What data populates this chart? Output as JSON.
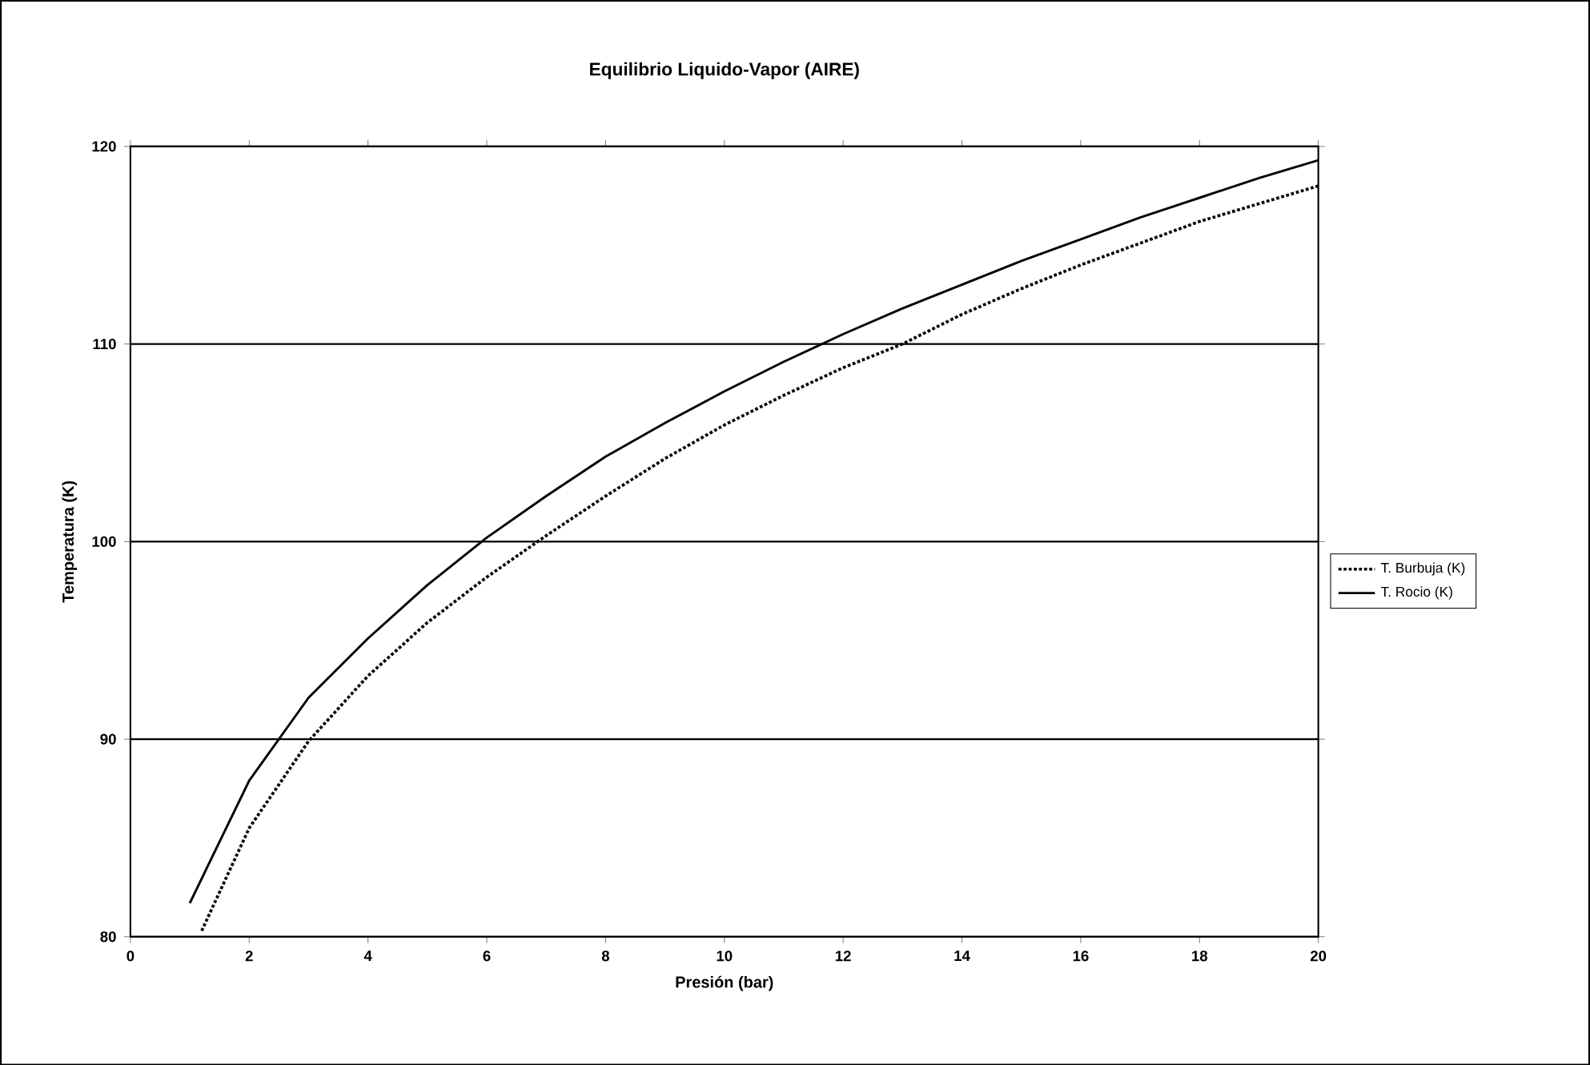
{
  "chart_data": {
    "type": "line",
    "title": "Equilibrio Liquido-Vapor (AIRE)",
    "xlabel": "Presión (bar)",
    "ylabel": "Temperatura (K)",
    "xlim": [
      0,
      20
    ],
    "xticks": [
      0,
      2,
      4,
      6,
      8,
      10,
      12,
      14,
      16,
      18,
      20
    ],
    "ylim": [
      80,
      120
    ],
    "yticks": [
      80,
      90,
      100,
      110,
      120
    ],
    "grid": "y",
    "legend": "right",
    "marker": "none",
    "series": [
      {
        "name": "T. Burbuja (K)",
        "color": "#000000",
        "line_style": "dotted",
        "x": [
          1.2,
          2,
          3,
          4,
          5,
          6,
          7,
          8,
          9,
          10,
          11,
          12,
          13,
          14,
          15,
          16,
          17,
          18,
          19,
          20
        ],
        "values": [
          80.3,
          85.5,
          89.9,
          93.2,
          95.9,
          98.2,
          100.3,
          102.3,
          104.2,
          105.9,
          107.4,
          108.8,
          110.0,
          111.5,
          112.8,
          114.0,
          115.1,
          116.2,
          117.1,
          118.0
        ]
      },
      {
        "name": "T. Rocio (K)",
        "color": "#000000",
        "line_style": "solid",
        "x": [
          1,
          2,
          3,
          4,
          5,
          6,
          7,
          8,
          9,
          10,
          11,
          12,
          13,
          14,
          15,
          16,
          17,
          18,
          19,
          20
        ],
        "values": [
          81.7,
          87.9,
          92.1,
          95.1,
          97.8,
          100.2,
          102.3,
          104.3,
          106.0,
          107.6,
          109.1,
          110.5,
          111.8,
          113.0,
          114.2,
          115.3,
          116.4,
          117.4,
          118.4,
          119.3
        ]
      }
    ]
  }
}
